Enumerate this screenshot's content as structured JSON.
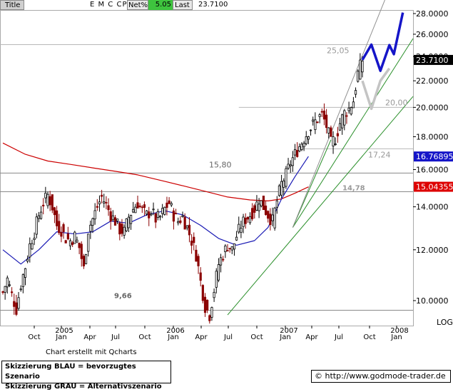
{
  "header": {
    "title": "Title",
    "symbol": "E M C CP",
    "net_label": "Net%",
    "net_value": "5.05",
    "last_label": "Last",
    "last_value": "23.7100"
  },
  "credit": "Chart erstellt mit Qcharts",
  "legend": {
    "line1": "Skizzierung BLAU = bevorzugtes Szenario",
    "line2": "Skizzierung GRAU = Alternativszenario"
  },
  "source": "© http://www.godmode-trader.de",
  "colors": {
    "ma_long": "#cc0000",
    "ma_short": "#1a1ab4",
    "trend": "#2a8f2a",
    "channel": "#909090",
    "scenario_blue": "#1515c8",
    "scenario_grey": "#c4c4c4",
    "candle_down": "#8b0000",
    "candle_up": "#000000"
  },
  "chart_data": {
    "type": "candlestick",
    "ylim": [
      9.2,
      29.5
    ],
    "y_scale": "log",
    "y_ticks": [
      "28.0000",
      "26.0000",
      "24.0000",
      "22.0000",
      "20.0000",
      "18.0000",
      "16.0000",
      "14.0000",
      "12.0000",
      "10.0000"
    ],
    "y_label": "LOG",
    "x_month_labels": [
      "Oct",
      "Jan",
      "Apr",
      "Jul",
      "Oct",
      "Jan",
      "Apr",
      "Jul",
      "Oct",
      "Jan",
      "Apr",
      "Jul",
      "Oct",
      "Jan"
    ],
    "x_year_labels": [
      "2005",
      "2006",
      "2007",
      "2008"
    ],
    "price_tags": [
      {
        "value": "23.7100",
        "bg": "#000000",
        "fg": "#ffffff"
      },
      {
        "value": "16.76895",
        "bg": "#1515c8",
        "fg": "#ffffff"
      },
      {
        "value": "15.04355",
        "bg": "#dd0000",
        "fg": "#ffffff"
      }
    ],
    "annotations": [
      "25,05",
      "20,00",
      "17,24",
      "15,80",
      "14,78",
      "9,66"
    ],
    "horizontal_levels": [
      25.05,
      20.0,
      17.24,
      15.8,
      14.78,
      9.66
    ],
    "series": [
      {
        "name": "price_weekly_close",
        "x": [
          0,
          2,
          4,
          6,
          8,
          10,
          12,
          14,
          16,
          18,
          20,
          22,
          24,
          26,
          28,
          30,
          32,
          34,
          36,
          38,
          40,
          42,
          44,
          46,
          48,
          50,
          52,
          54,
          56,
          58,
          60,
          62,
          64,
          66,
          68,
          70,
          72,
          74,
          76,
          78,
          80,
          82,
          84,
          86,
          88,
          90,
          92,
          94,
          96,
          98,
          100,
          102,
          104,
          106,
          108,
          110,
          112,
          114,
          116,
          118,
          120,
          122,
          124,
          126,
          128,
          130,
          132,
          134,
          136,
          138,
          140,
          142,
          144,
          146,
          148,
          150,
          152,
          154,
          156,
          158,
          160
        ],
        "values": [
          10.3,
          10.8,
          10.2,
          9.7,
          10.6,
          11.3,
          12.2,
          12.8,
          13.6,
          14.2,
          14.6,
          14.0,
          13.1,
          12.9,
          12.5,
          12.4,
          12.6,
          12.1,
          11.2,
          12.9,
          13.4,
          14.0,
          14.5,
          14.1,
          13.6,
          13.3,
          12.9,
          12.8,
          13.5,
          13.9,
          14.2,
          13.8,
          13.6,
          13.8,
          13.4,
          13.5,
          13.9,
          14.2,
          13.6,
          13.3,
          13.5,
          13.0,
          12.4,
          11.8,
          10.7,
          9.8,
          9.5,
          10.4,
          11.4,
          11.8,
          12.2,
          12.0,
          12.6,
          13.1,
          13.4,
          13.6,
          13.9,
          14.4,
          14.0,
          13.6,
          13.3,
          14.3,
          15.2,
          15.7,
          16.4,
          16.9,
          17.4,
          17.9,
          18.4,
          18.8,
          19.2,
          19.5,
          18.7,
          17.6,
          17.9,
          18.9,
          19.6,
          19.9,
          20.5,
          22.6,
          23.71
        ]
      },
      {
        "name": "moving_average_long",
        "x": [
          0,
          10,
          20,
          30,
          40,
          50,
          60,
          70,
          80,
          90,
          100,
          110,
          118,
          124,
          130,
          136
        ],
        "values": [
          17.6,
          16.9,
          16.5,
          16.3,
          16.1,
          15.9,
          15.7,
          15.4,
          15.1,
          14.8,
          14.5,
          14.35,
          14.3,
          14.4,
          14.7,
          15.04
        ]
      },
      {
        "name": "moving_average_short",
        "x": [
          0,
          8,
          16,
          24,
          32,
          40,
          48,
          56,
          64,
          72,
          80,
          88,
          96,
          104,
          112,
          118,
          124,
          130,
          136
        ],
        "values": [
          12.0,
          11.4,
          12.0,
          12.8,
          12.7,
          12.8,
          13.3,
          13.2,
          13.6,
          13.8,
          13.6,
          13.1,
          12.5,
          12.2,
          12.4,
          13.0,
          14.4,
          15.6,
          16.77
        ]
      }
    ],
    "scenario_blue": {
      "x": [
        160,
        164,
        168,
        172,
        174,
        178
      ],
      "values": [
        23.71,
        25.05,
        22.8,
        25.0,
        24.2,
        28.1
      ]
    },
    "scenario_grey": {
      "x": [
        160,
        164,
        168,
        172
      ],
      "values": [
        22.0,
        19.9,
        22.0,
        23.0
      ]
    }
  }
}
